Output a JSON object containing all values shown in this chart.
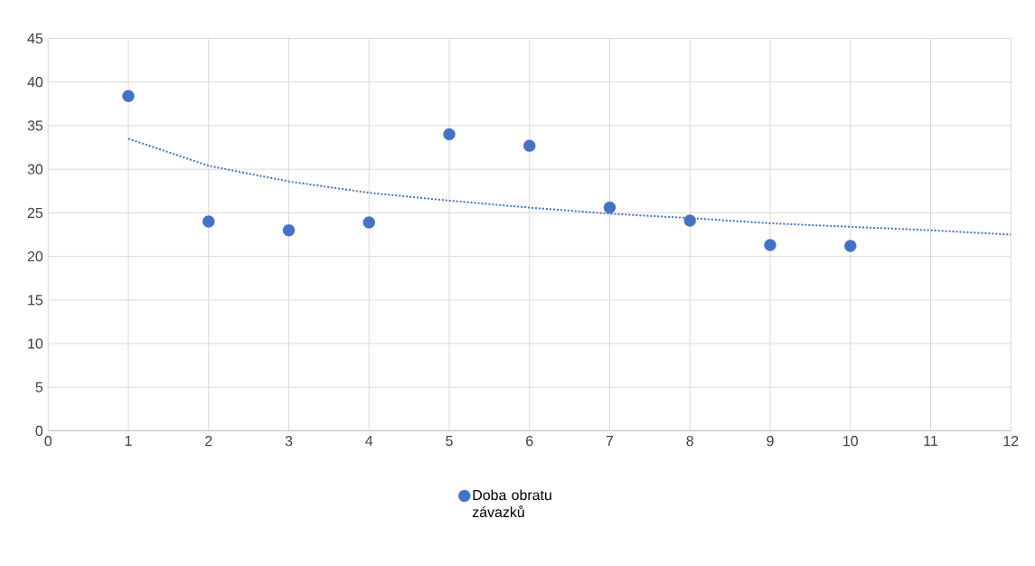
{
  "chart_data": {
    "type": "scatter",
    "x": [
      1,
      2,
      3,
      4,
      5,
      6,
      7,
      8,
      9,
      10
    ],
    "series": [
      {
        "name": "Doba obratu závazků",
        "color": "#4472c4",
        "values": [
          38.4,
          24.0,
          23.0,
          23.9,
          34.0,
          32.7,
          25.6,
          24.1,
          21.3,
          21.2
        ],
        "marker": "circle"
      },
      {
        "type": "line",
        "color": "#4472c4",
        "line_style": "dotted",
        "marker": "none",
        "x": [
          1,
          2,
          3,
          4,
          5,
          6,
          7,
          8,
          9,
          10,
          11,
          12
        ],
        "values": [
          33.5,
          30.4,
          28.6,
          27.3,
          26.4,
          25.6,
          24.9,
          24.4,
          23.8,
          23.4,
          23.0,
          22.5
        ]
      }
    ],
    "xlim": [
      0,
      12
    ],
    "xticks": [
      0,
      1,
      2,
      3,
      4,
      5,
      6,
      7,
      8,
      9,
      10,
      11,
      12
    ],
    "ylim": [
      0,
      45
    ],
    "yticks": [
      0,
      5,
      10,
      15,
      20,
      25,
      30,
      35,
      40,
      45
    ],
    "grid": true,
    "legend": "bottom"
  }
}
